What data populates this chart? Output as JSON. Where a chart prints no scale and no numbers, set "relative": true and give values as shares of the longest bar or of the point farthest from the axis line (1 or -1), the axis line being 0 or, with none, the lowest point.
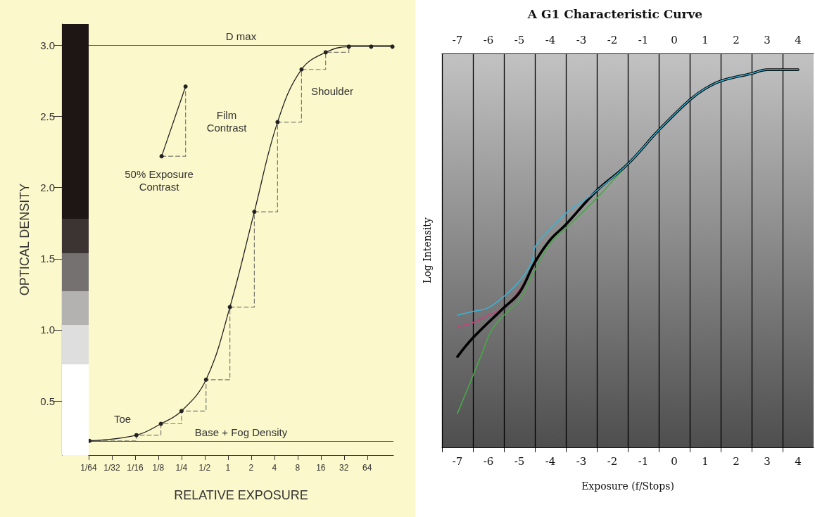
{
  "chart_data": [
    {
      "type": "line",
      "xlabel": "RELATIVE EXPOSURE",
      "ylabel": "OPTICAL DENSITY",
      "log": "x",
      "xlim": [
        0.015625,
        140
      ],
      "xticks": [
        {
          "value": 0.015625,
          "label": "1/64"
        },
        {
          "value": 0.03125,
          "label": "1/32"
        },
        {
          "value": 0.0625,
          "label": "1/16"
        },
        {
          "value": 0.125,
          "label": "1/8"
        },
        {
          "value": 0.25,
          "label": "1/4"
        },
        {
          "value": 0.5,
          "label": "1/2"
        },
        1,
        2,
        4,
        8,
        16,
        32,
        64
      ],
      "ylim": [
        0.12,
        3.15
      ],
      "yticks": [
        {
          "value": 0.5,
          "label": "0.5"
        },
        {
          "value": 1,
          "label": "1.0"
        },
        1.5,
        {
          "value": 2,
          "label": "2.0"
        },
        2.5,
        {
          "value": 3,
          "label": "3.0"
        }
      ],
      "series": [
        {
          "type": "step",
          "color": "#7a7a70",
          "line_style": "dashed",
          "x": [
            0.016,
            0.065,
            0.135,
            0.25,
            0.52,
            1.06,
            2.2,
            4.4,
            9,
            18.5,
            37
          ],
          "values": [
            0.22,
            0.26,
            0.34,
            0.43,
            0.65,
            1.16,
            1.83,
            2.46,
            2.83,
            2.95,
            2.99
          ]
        },
        {
          "type": "step",
          "color": "#7a7a70",
          "line_style": "dashed",
          "x": [
            0.138,
            0.282
          ],
          "values": [
            2.22,
            2.71
          ]
        },
        {
          "color": "#222222",
          "marker": "circle",
          "x": [
            0.138,
            0.282
          ],
          "values": [
            2.22,
            2.71
          ]
        },
        {
          "color": "#222222",
          "marker": "circle",
          "x": [
            0.016,
            0.065,
            0.135,
            0.25,
            0.52,
            1.06,
            2.2,
            4.4,
            9,
            18.5,
            37,
            72,
            136
          ],
          "values": [
            0.22,
            0.26,
            0.34,
            0.43,
            0.65,
            1.16,
            1.83,
            2.46,
            2.83,
            2.95,
            2.99,
            2.99,
            2.99
          ]
        }
      ],
      "ref_lines": [
        {
          "axis": "y",
          "value": 3.0,
          "label": "D max",
          "color": "#555555"
        },
        {
          "axis": "y",
          "value": 0.22,
          "label": "Base + Fog Density",
          "color": "#555555"
        }
      ],
      "annotations": [
        "Shoulder",
        "Film Contrast",
        "50% Exposure Contrast",
        "Toe"
      ]
    },
    {
      "type": "line",
      "title": "A G1 Characteristic Curve",
      "xlabel": "Exposure (f/Stops)",
      "ylabel": "Log Intensity",
      "relative": true,
      "grid": "x",
      "xlim": [
        -7.5,
        4.5
      ],
      "xticks": [
        {
          "value": -7.5,
          "label": null
        },
        -7,
        {
          "value": -6.5,
          "label": null
        },
        -6,
        {
          "value": -5.5,
          "label": null
        },
        -5,
        {
          "value": -4.5,
          "label": null
        },
        -4,
        {
          "value": -3.5,
          "label": null
        },
        -3,
        {
          "value": -2.5,
          "label": null
        },
        -2,
        {
          "value": -1.5,
          "label": null
        },
        -1,
        {
          "value": -0.5,
          "label": null
        },
        0,
        {
          "value": 0.5,
          "label": null
        },
        1,
        {
          "value": 1.5,
          "label": null
        },
        2,
        {
          "value": 2.5,
          "label": null
        },
        3,
        {
          "value": 3.5,
          "label": null
        },
        4
      ],
      "x2lim": [
        -7.5,
        4.5
      ],
      "x2ticks": [
        -7,
        -6,
        -5,
        -4,
        -3,
        -2,
        -1,
        0,
        1,
        2,
        3,
        4
      ],
      "series": [
        {
          "color": "#4aa84a",
          "x": [
            -7,
            -6.5,
            -6.2,
            -5.9,
            -5.5,
            -5,
            -4.5,
            -4,
            -3.5,
            -2.5,
            -1.5,
            -0.5,
            0.5,
            1,
            1.5,
            2.5
          ],
          "values": [
            0.09,
            0.19,
            0.25,
            0.31,
            0.35,
            0.39,
            0.47,
            0.54,
            0.58,
            0.66,
            0.75,
            0.84,
            0.92,
            0.95,
            0.97,
            0.99
          ]
        },
        {
          "color": "#c8407a",
          "x": [
            -7,
            -6.5,
            -6,
            -5.5,
            -4.8
          ],
          "values": [
            0.32,
            0.33,
            0.35,
            0.37,
            0.44
          ]
        },
        {
          "color": "#000000",
          "x": [
            -7,
            -6.5,
            -5.5,
            -5,
            -4.5,
            -4,
            -3.5,
            -2.5,
            -1.5,
            -0.5,
            0.5,
            1,
            1.5,
            2.5,
            3,
            4
          ],
          "values": [
            0.24,
            0.29,
            0.37,
            0.41,
            0.49,
            0.55,
            0.59,
            0.68,
            0.75,
            0.84,
            0.92,
            0.95,
            0.97,
            0.99,
            1.0,
            1.0
          ]
        },
        {
          "color": "#3cb4d8",
          "x": [
            -7,
            -6.5,
            -6,
            -5.5,
            -5,
            -4.6,
            -4.5,
            -4.1,
            -3.5,
            -2.8,
            -2.5,
            -1.5,
            -0.5,
            0.5,
            1,
            1.5,
            2.5,
            3,
            4
          ],
          "values": [
            0.35,
            0.36,
            0.37,
            0.4,
            0.44,
            0.49,
            0.53,
            0.57,
            0.62,
            0.66,
            0.68,
            0.75,
            0.84,
            0.92,
            0.95,
            0.97,
            0.99,
            1.0,
            1.0
          ]
        }
      ]
    }
  ]
}
